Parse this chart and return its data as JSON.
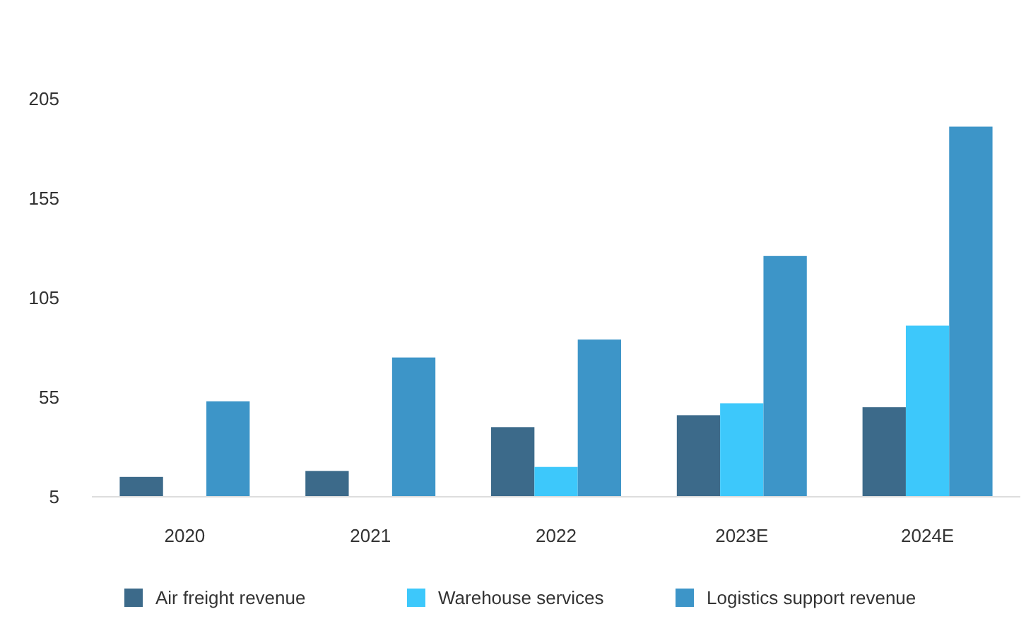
{
  "chart_data": {
    "type": "bar",
    "categories": [
      "2020",
      "2021",
      "2022",
      "2023E",
      "2024E"
    ],
    "series": [
      {
        "name": "Air freight revenue",
        "color": "#3c6a8a",
        "values": [
          15,
          18,
          40,
          46,
          50
        ]
      },
      {
        "name": "Warehouse services",
        "color": "#3dc8fb",
        "values": [
          null,
          null,
          20,
          52,
          91
        ]
      },
      {
        "name": "Logistics support revenue",
        "color": "#3d95c8",
        "values": [
          53,
          75,
          84,
          126,
          191
        ]
      }
    ],
    "ylim": [
      5,
      205
    ],
    "yticks": [
      5,
      55,
      105,
      155,
      205
    ],
    "grid": false,
    "legend": "bottom"
  }
}
